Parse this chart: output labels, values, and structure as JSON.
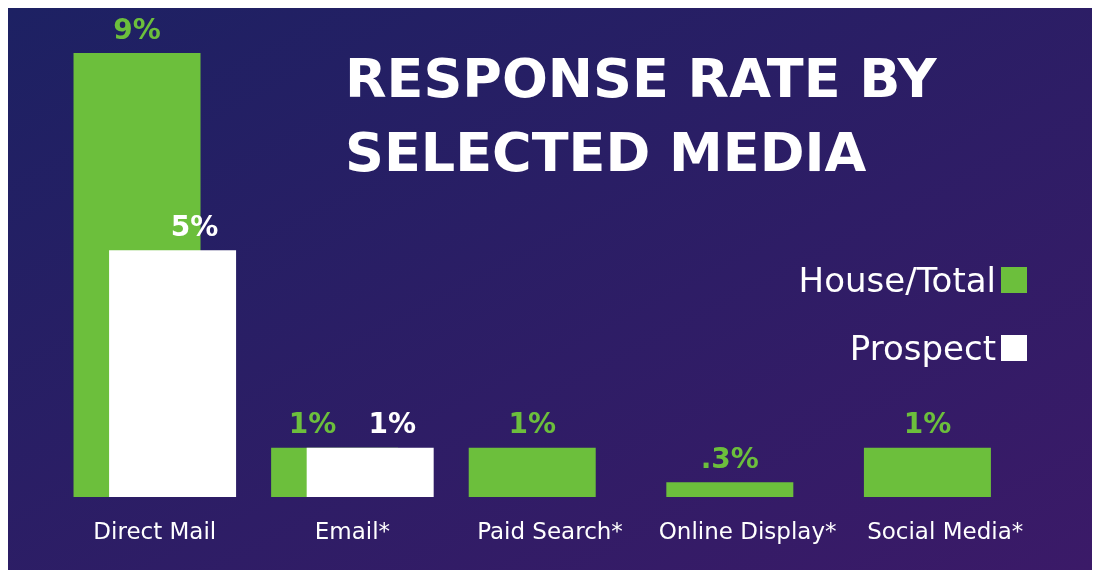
{
  "chart_data": {
    "type": "bar",
    "title": "RESPONSE RATE BY SELECTED MEDIA",
    "categories": [
      "Direct Mail",
      "Email*",
      "Paid Search*",
      "Online Display*",
      "Social Media*"
    ],
    "series": [
      {
        "name": "House/Total",
        "color": "#6cbf3c",
        "values": [
          9,
          1,
          1,
          0.3,
          1
        ],
        "value_labels": [
          "9%",
          "1%",
          "1%",
          ".3%",
          "1%"
        ]
      },
      {
        "name": "Prospect",
        "color": "#ffffff",
        "values": [
          5,
          1,
          null,
          null,
          null
        ],
        "value_labels": [
          "5%",
          "1%",
          null,
          null,
          null
        ]
      }
    ],
    "legend": "right",
    "grid": false
  }
}
